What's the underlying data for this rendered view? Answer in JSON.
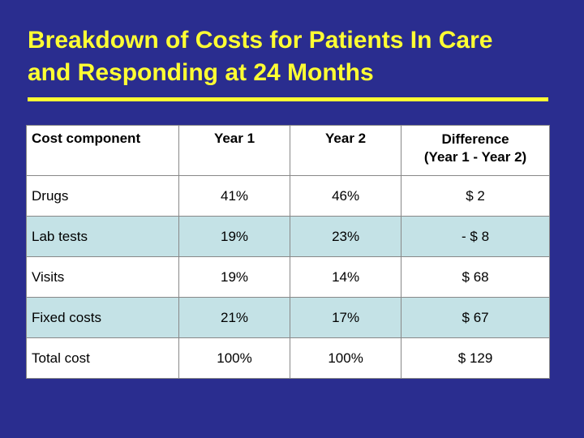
{
  "slide": {
    "title": "Breakdown of Costs for Patients In Care\nand Responding at 24 Months"
  },
  "table": {
    "headers": [
      "Cost component",
      "Year 1",
      "Year 2",
      "Difference\n(Year 1 - Year 2)"
    ],
    "rows": [
      [
        "Drugs",
        "41%",
        "46%",
        "$ 2"
      ],
      [
        "Lab tests",
        "19%",
        "23%",
        "- $ 8"
      ],
      [
        "Visits",
        "19%",
        "14%",
        "$ 68"
      ],
      [
        "Fixed costs",
        "21%",
        "17%",
        "$ 67"
      ],
      [
        "Total cost",
        "100%",
        "100%",
        "$ 129"
      ]
    ]
  },
  "colors": {
    "background": "#2a2d8f",
    "title": "#ffff33",
    "row_alt": "#c4e2e6",
    "row_plain": "#ffffff"
  }
}
